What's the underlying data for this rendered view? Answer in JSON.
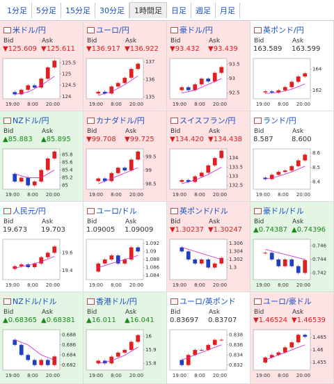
{
  "tabs": [
    "1分足",
    "5分足",
    "15分足",
    "30分足",
    "1時間足",
    "日足",
    "週足",
    "月足"
  ],
  "selected_tab": 4,
  "labels": {
    "bid": "Bid",
    "ask": "Ask"
  },
  "chart_xlabels": [
    "19:00",
    "8:00",
    "20:00"
  ],
  "pairs": [
    {
      "name": "米ドル/円",
      "trend": "down",
      "bid": "▼125.609",
      "ask": "▼125.611",
      "chart": {
        "ylim": [
          123.9,
          125.7
        ],
        "yticks": [
          125.5,
          125,
          124.5,
          124
        ],
        "closes": [
          124.2,
          124.1,
          124.3,
          124.5,
          124.4,
          124.8,
          125.3,
          125.6
        ],
        "ma": [
          124.1,
          124.2,
          124.5,
          124.9
        ]
      }
    },
    {
      "name": "ユーロ/円",
      "trend": "down",
      "bid": "▼136.917",
      "ask": "▼136.922",
      "chart": {
        "ylim": [
          134.9,
          137.2
        ],
        "yticks": [
          137,
          136,
          135
        ],
        "closes": [
          135.2,
          135.3,
          135.2,
          135.6,
          135.8,
          136.1,
          136.6,
          136.9
        ],
        "ma": [
          135.1,
          135.3,
          135.7,
          136.2
        ]
      }
    },
    {
      "name": "豪ドル/円",
      "trend": "down",
      "bid": "▼93.432",
      "ask": "▼93.439",
      "chart": {
        "ylim": [
          92.3,
          93.7
        ],
        "yticks": [
          93.5,
          93,
          92.5
        ],
        "closes": [
          92.6,
          92.7,
          92.6,
          92.8,
          93.0,
          92.9,
          93.2,
          93.4
        ],
        "ma": [
          92.5,
          92.6,
          92.8,
          93.0
        ]
      }
    },
    {
      "name": "英ポンド/円",
      "trend": null,
      "bid": "163.589",
      "ask": "163.599",
      "chart": {
        "ylim": [
          161.2,
          165
        ],
        "yticks": [
          164,
          162
        ],
        "closes": [
          161.8,
          161.9,
          161.8,
          162.0,
          162.3,
          162.8,
          163.3,
          163.6
        ],
        "ma": [
          161.7,
          161.8,
          162.1,
          162.6
        ]
      }
    },
    {
      "name": "NZドル/円",
      "trend": "up",
      "bid": "▲85.883",
      "ask": "▲85.895",
      "chart": {
        "ylim": [
          84.9,
          85.95
        ],
        "yticks": [
          85.8,
          85.6,
          85.4,
          85.2,
          85
        ],
        "closes": [
          85.3,
          85.1,
          85.2,
          85.0,
          85.1,
          85.4,
          85.7,
          85.88
        ],
        "ma": [
          85.3,
          85.2,
          85.2,
          85.4
        ]
      }
    },
    {
      "name": "カナダドル/円",
      "trend": "down",
      "bid": "▼99.708",
      "ask": "▼99.725",
      "chart": {
        "ylim": [
          98.3,
          99.8
        ],
        "yticks": [
          99.5,
          99,
          98.5
        ],
        "closes": [
          98.6,
          98.7,
          98.6,
          98.9,
          99.1,
          99.0,
          99.4,
          99.7
        ],
        "ma": [
          98.5,
          98.7,
          98.9,
          99.1
        ]
      }
    },
    {
      "name": "スイスフラン/円",
      "trend": "down",
      "bid": "▼134.420",
      "ask": "▼134.438",
      "chart": {
        "ylim": [
          132.3,
          134.5
        ],
        "yticks": [
          134,
          133.5,
          133,
          132.5
        ],
        "closes": [
          132.7,
          132.8,
          132.7,
          133.0,
          133.2,
          133.6,
          134.0,
          134.4
        ],
        "ma": [
          132.6,
          132.8,
          133.1,
          133.5
        ]
      }
    },
    {
      "name": "ランド/円",
      "trend": null,
      "bid": "8.587",
      "ask": "8.600",
      "chart": {
        "ylim": [
          8.35,
          8.63
        ],
        "yticks": [
          8.6,
          8.5,
          8.4
        ],
        "closes": [
          8.43,
          8.42,
          8.45,
          8.47,
          8.48,
          8.51,
          8.55,
          8.59
        ],
        "ma": [
          8.42,
          8.44,
          8.47,
          8.51
        ]
      }
    },
    {
      "name": "人民元/円",
      "trend": null,
      "bid": "19.673",
      "ask": "19.703",
      "chart": {
        "ylim": [
          19.3,
          19.75
        ],
        "yticks": [
          19.6,
          19.4
        ],
        "closes": [
          19.42,
          19.45,
          19.47,
          19.44,
          19.48,
          19.55,
          19.6,
          19.67
        ],
        "ma": [
          19.43,
          19.46,
          19.5,
          19.56
        ]
      }
    },
    {
      "name": "ユーロ/ドル",
      "trend": null,
      "bid": "1.09005",
      "ask": "1.09009",
      "chart": {
        "ylim": [
          1.083,
          1.093
        ],
        "yticks": [
          1.092,
          1.09,
          1.088,
          1.086,
          1.084
        ],
        "closes": [
          1.085,
          1.087,
          1.088,
          1.089,
          1.087,
          1.088,
          1.091,
          1.09
        ],
        "ma": [
          1.086,
          1.087,
          1.088,
          1.089
        ]
      }
    },
    {
      "name": "英ポンド/ドル",
      "trend": "down",
      "bid": "▼1.30237",
      "ask": "▼1.30247",
      "chart": {
        "ylim": [
          1.297,
          1.307
        ],
        "yticks": [
          1.306,
          1.304,
          1.302,
          1.3
        ],
        "closes": [
          1.305,
          1.304,
          1.302,
          1.301,
          1.302,
          1.3,
          1.301,
          1.3024
        ],
        "ma": [
          1.305,
          1.304,
          1.303,
          1.302
        ]
      }
    },
    {
      "name": "豪ドル/ドル",
      "trend": "up",
      "bid": "▲0.74387",
      "ask": "▲0.74396",
      "chart": {
        "ylim": [
          0.741,
          0.747
        ],
        "yticks": [
          0.746,
          0.744,
          0.742
        ],
        "closes": [
          0.745,
          0.745,
          0.744,
          0.743,
          0.744,
          0.743,
          0.742,
          0.7439
        ],
        "ma": [
          0.7455,
          0.745,
          0.7445,
          0.744
        ]
      }
    },
    {
      "name": "NZドル/ドル",
      "trend": "up",
      "bid": "▲0.68365",
      "ask": "▲0.68381",
      "chart": {
        "ylim": [
          0.681,
          0.689
        ],
        "yticks": [
          0.688,
          0.686,
          0.684,
          0.682
        ],
        "closes": [
          0.687,
          0.686,
          0.684,
          0.683,
          0.682,
          0.683,
          0.682,
          0.6837
        ],
        "ma": [
          0.687,
          0.686,
          0.684,
          0.683
        ]
      }
    },
    {
      "name": "香港ドル/円",
      "trend": "up",
      "bid": "▲16.011",
      "ask": "▲16.041",
      "chart": {
        "ylim": [
          15.75,
          16.05
        ],
        "yticks": [
          16,
          15.9,
          15.8
        ],
        "closes": [
          15.8,
          15.82,
          15.8,
          15.85,
          15.88,
          15.9,
          15.96,
          16.01
        ],
        "ma": [
          15.8,
          15.82,
          15.86,
          15.92
        ]
      }
    },
    {
      "name": "ユーロ/英ポンド",
      "trend": null,
      "bid": "0.83697",
      "ask": "0.83707",
      "chart": {
        "ylim": [
          0.831,
          0.839
        ],
        "yticks": [
          0.838,
          0.836,
          0.834,
          0.832
        ],
        "closes": [
          0.833,
          0.832,
          0.834,
          0.835,
          0.835,
          0.836,
          0.837,
          0.837
        ],
        "ma": [
          0.833,
          0.834,
          0.835,
          0.836
        ]
      }
    },
    {
      "name": "ユーロ/豪ドル",
      "trend": "down",
      "bid": "▼1.46524",
      "ask": "▼1.46539",
      "chart": {
        "ylim": [
          1.452,
          1.468
        ],
        "yticks": [
          1.465,
          1.46,
          1.455
        ],
        "closes": [
          1.455,
          1.457,
          1.458,
          1.459,
          1.461,
          1.463,
          1.466,
          1.4652
        ],
        "ma": [
          1.456,
          1.458,
          1.46,
          1.462
        ]
      }
    }
  ]
}
